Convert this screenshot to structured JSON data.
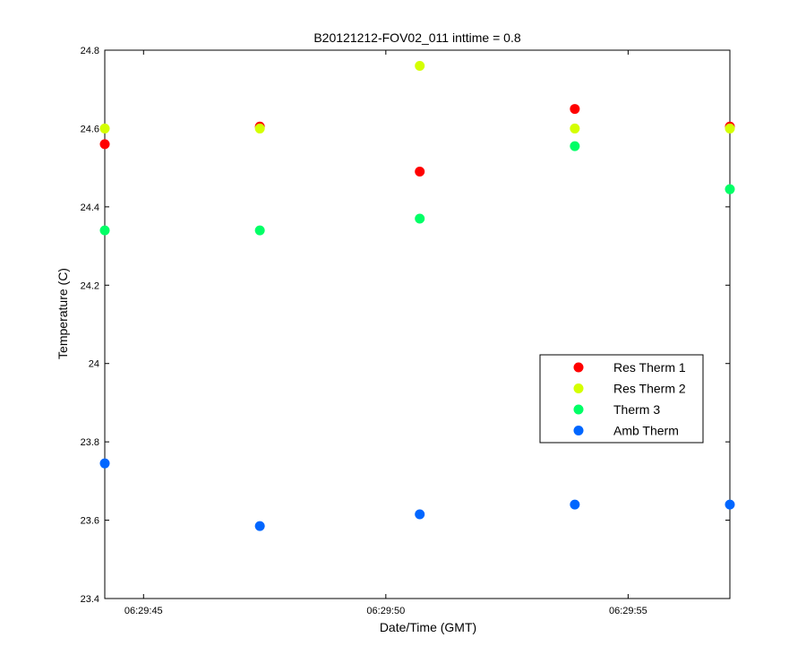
{
  "chart_data": {
    "type": "scatter",
    "title": "B20121212-FOV02_011 inttime = 0.8",
    "xlabel": "Date/Time (GMT)",
    "ylabel": "Temperature (C)",
    "xlim": [
      "06:29:44.2",
      "06:29:57.1"
    ],
    "ylim": [
      23.4,
      24.8
    ],
    "x_ticks": [
      "06:29:45",
      "06:29:50",
      "06:29:55"
    ],
    "y_ticks": [
      "23.4",
      "23.6",
      "23.8",
      "24",
      "24.2",
      "24.4",
      "24.6",
      "24.8"
    ],
    "legend_position": "right",
    "grid": false,
    "x": [
      "06:29:44.2",
      "06:29:47.4",
      "06:29:50.7",
      "06:29:53.9",
      "06:29:57.1"
    ],
    "series": [
      {
        "name": "Res Therm 1",
        "color": "#ff0000",
        "values": [
          24.56,
          24.605,
          24.49,
          24.65,
          24.605
        ]
      },
      {
        "name": "Res Therm 2",
        "color": "#d4ff00",
        "values": [
          24.6,
          24.6,
          24.76,
          24.6,
          24.6
        ]
      },
      {
        "name": "Therm 3",
        "color": "#00ff66",
        "values": [
          24.34,
          24.34,
          24.37,
          24.555,
          24.445
        ]
      },
      {
        "name": "Amb Therm",
        "color": "#0066ff",
        "values": [
          23.745,
          23.585,
          23.615,
          23.64,
          23.64
        ]
      }
    ]
  }
}
